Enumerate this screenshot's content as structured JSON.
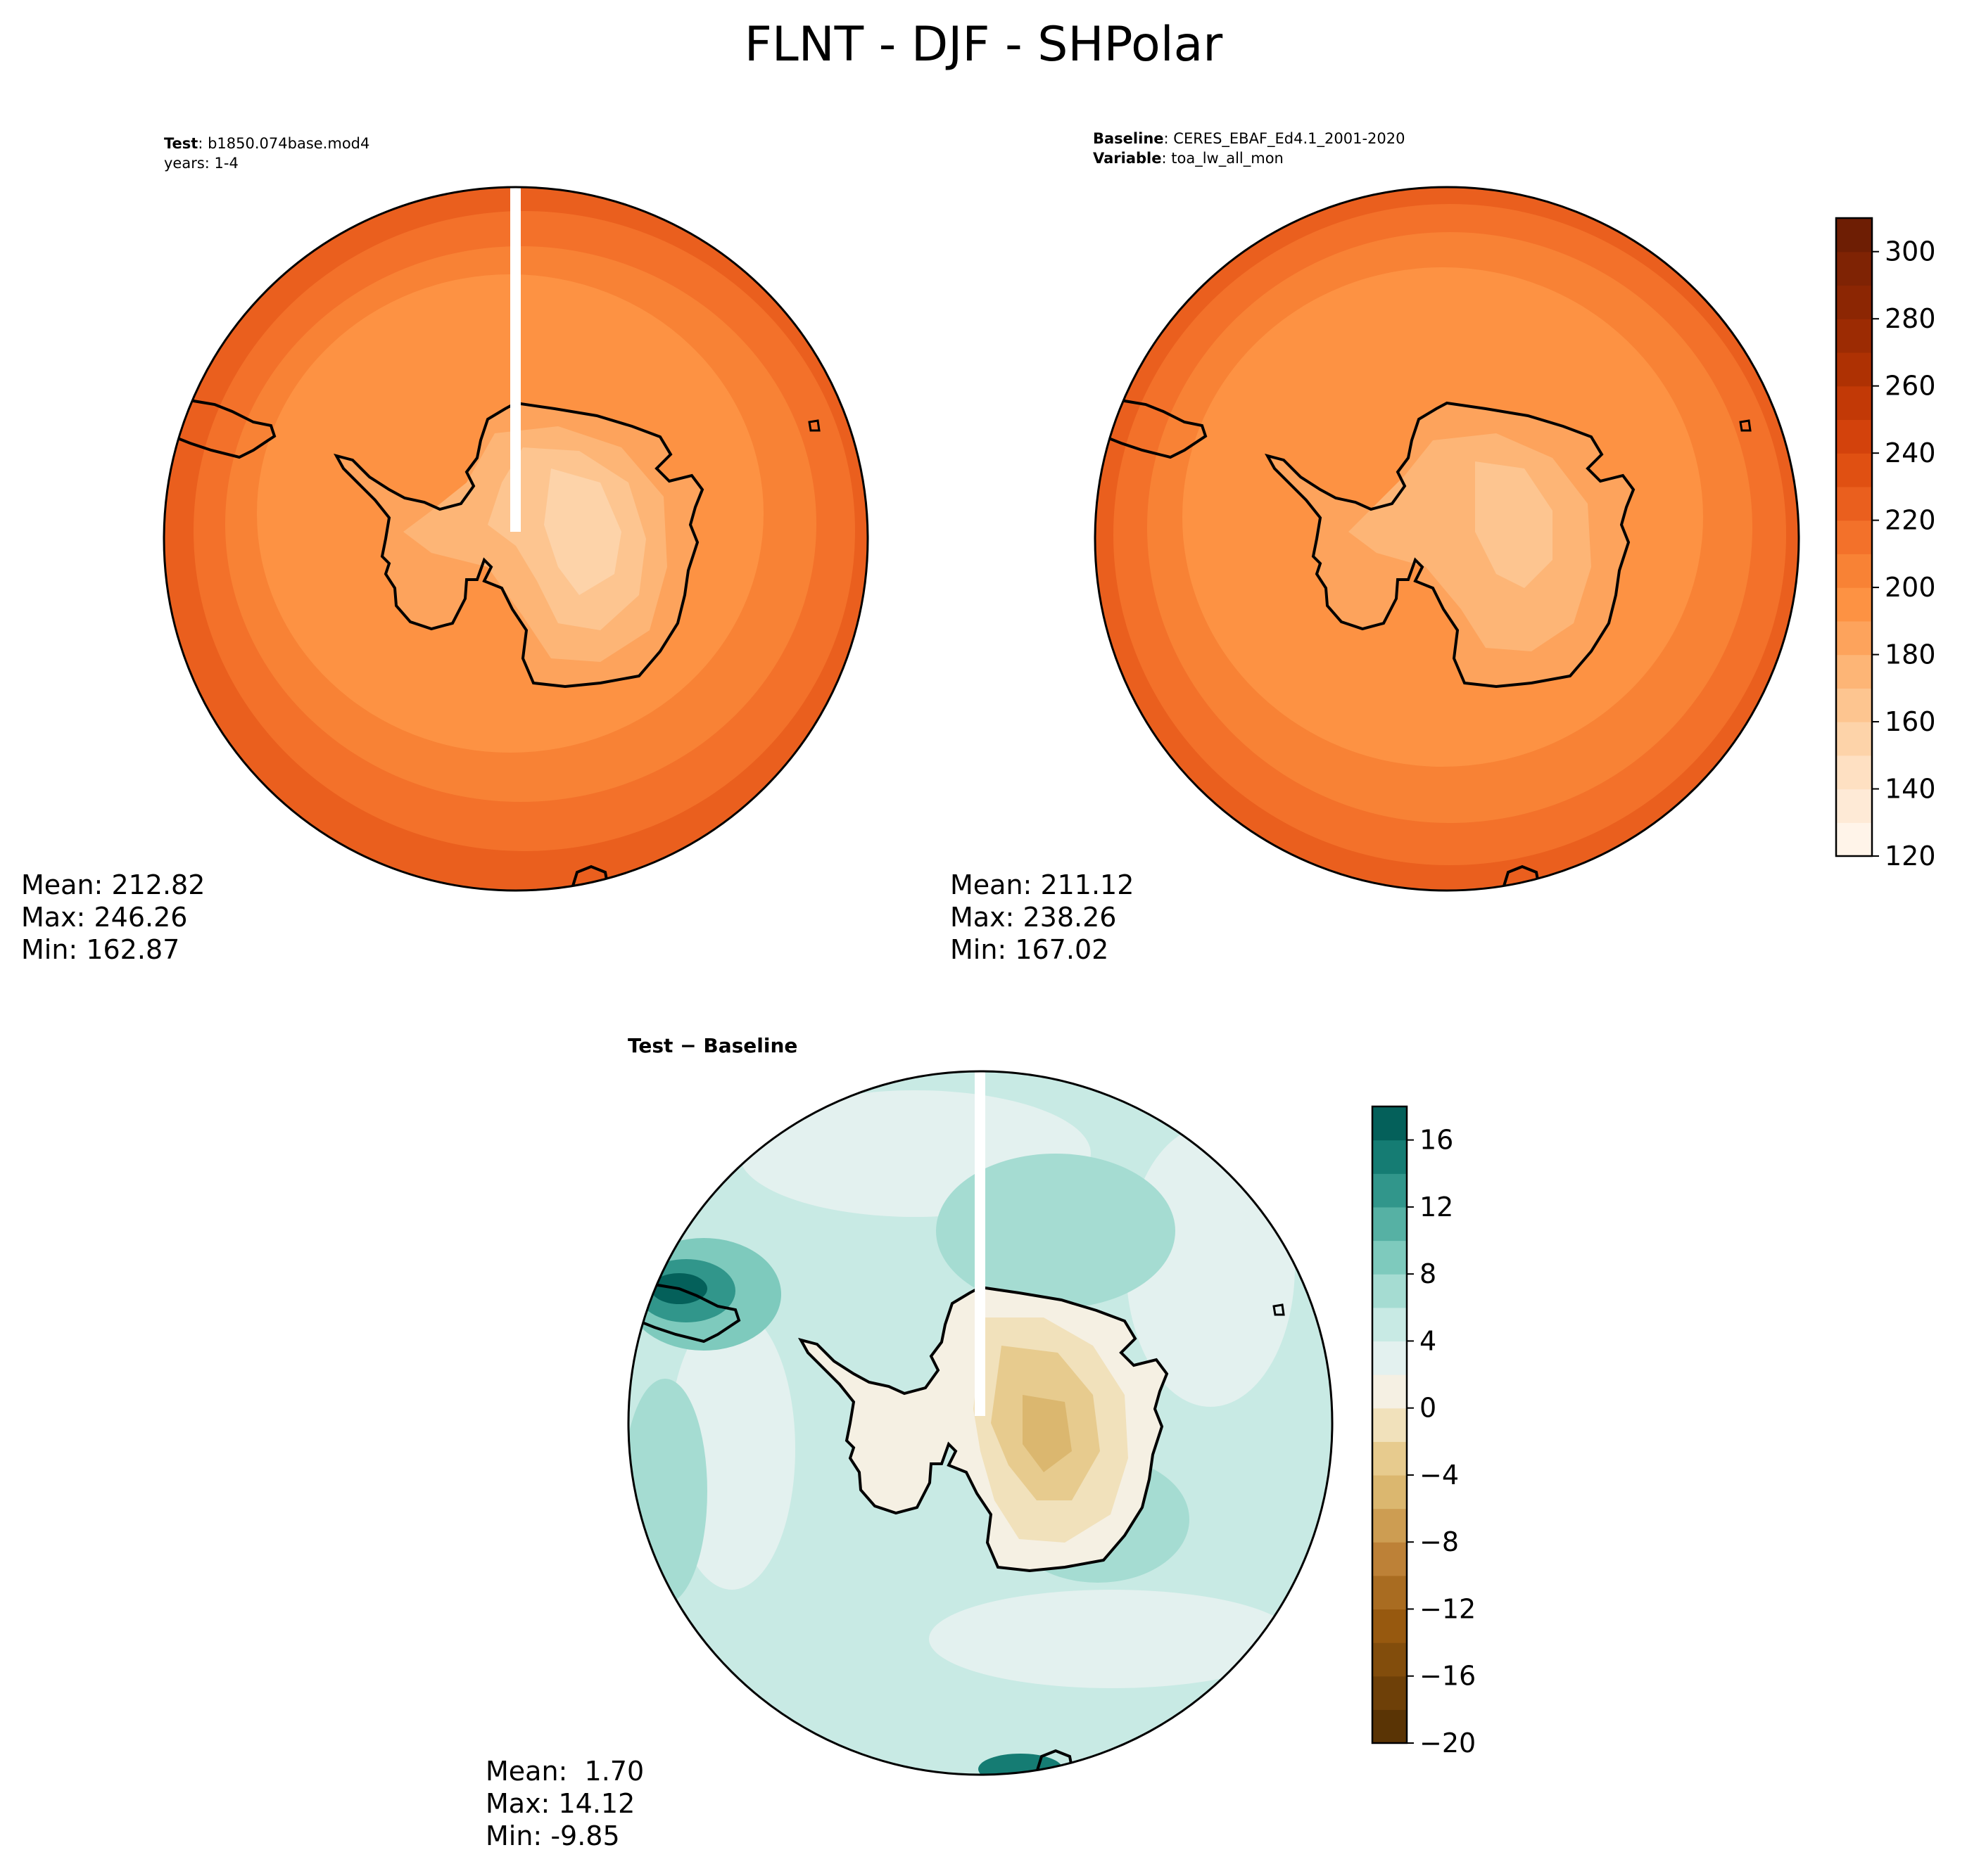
{
  "figure_title": "FLNT - DJF - SHPolar",
  "panels": {
    "test": {
      "name_label": "Test",
      "name_value": "b1850.074base.mod4",
      "years_line": "years: 1-4",
      "stats": {
        "mean_label": "Mean:",
        "mean": "212.82",
        "max_label": "Max:",
        "max": "246.26",
        "min_label": "Min:",
        "min": "162.87"
      }
    },
    "baseline": {
      "name_label": "Baseline",
      "name_value": "CERES_EBAF_Ed4.1_2001-2020",
      "variable_label": "Variable",
      "variable_value": "toa_lw_all_mon",
      "stats": {
        "mean_label": "Mean:",
        "mean": "211.12",
        "max_label": "Max:",
        "max": "238.26",
        "min_label": "Min:",
        "min": "167.02"
      }
    },
    "diff": {
      "title": "Test − Baseline",
      "stats": {
        "mean_label": "Mean:",
        "mean": " 1.70",
        "max_label": "Max:",
        "max": "14.12",
        "min_label": "Min:",
        "min": "-9.85"
      }
    }
  },
  "chart_data": [
    {
      "type": "heatmap",
      "projection": "south polar stereographic",
      "panel": "test",
      "colormap": "Oranges",
      "shared_colorbar": {
        "range": [
          120,
          310
        ],
        "levels": [
          120,
          130,
          140,
          150,
          160,
          170,
          180,
          190,
          200,
          210,
          220,
          230,
          240,
          250,
          260,
          270,
          280,
          290,
          300,
          310
        ],
        "tick_labels": [
          "120",
          "140",
          "160",
          "180",
          "200",
          "220",
          "240",
          "260",
          "280",
          "300"
        ],
        "colors": [
          "#fff4e9",
          "#feead6",
          "#fee0c2",
          "#fdd3a9",
          "#fdc590",
          "#fdb576",
          "#fda35c",
          "#fd9243",
          "#f88235",
          "#f3712a",
          "#ea5f1e",
          "#e05012",
          "#d3420c",
          "#c23906",
          "#ae3103",
          "#9c2b03",
          "#8c2603",
          "#7f2304",
          "#6e1e04"
        ]
      },
      "regions": [
        {
          "region": "outer ring",
          "approx_value": 235
        },
        {
          "region": "southern ocean",
          "approx_value": 215
        },
        {
          "region": "antarctic coast",
          "approx_value": 195
        },
        {
          "region": "east antarctic plateau",
          "approx_value": 170
        }
      ]
    },
    {
      "type": "heatmap",
      "projection": "south polar stereographic",
      "panel": "baseline",
      "colormap": "Oranges",
      "regions": [
        {
          "region": "outer ring",
          "approx_value": 230
        },
        {
          "region": "southern ocean",
          "approx_value": 215
        },
        {
          "region": "antarctic coast",
          "approx_value": 200
        },
        {
          "region": "east antarctic plateau",
          "approx_value": 180
        }
      ]
    },
    {
      "type": "heatmap",
      "projection": "south polar stereographic",
      "panel": "diff",
      "colormap": "BrBG",
      "colorbar": {
        "range": [
          -20,
          18
        ],
        "levels": [
          -20,
          -18,
          -16,
          -14,
          -12,
          -10,
          -8,
          -6,
          -4,
          -2,
          0,
          2,
          4,
          6,
          8,
          10,
          12,
          14,
          16,
          18
        ],
        "tick_labels": [
          "−20",
          "−16",
          "−12",
          "−8",
          "−4",
          "0",
          "4",
          "8",
          "12",
          "16"
        ],
        "colors": [
          "#5a3405",
          "#6e4008",
          "#824d0c",
          "#97590f",
          "#a96c21",
          "#bd8137",
          "#cd9d52",
          "#dbb76f",
          "#e7cb8e",
          "#f1e1bb",
          "#f5f0e3",
          "#e3f1ef",
          "#c8eae4",
          "#a5dcd2",
          "#7ecabd",
          "#56b1a4",
          "#31968b",
          "#157c73",
          "#04605a"
        ]
      },
      "regions": [
        {
          "region": "open ocean",
          "approx_value": 2
        },
        {
          "region": "ocean band near antarctica",
          "approx_value": 5
        },
        {
          "region": "south america tip",
          "approx_value": 14
        },
        {
          "region": "antarctic interior",
          "approx_value": -6
        }
      ]
    }
  ]
}
